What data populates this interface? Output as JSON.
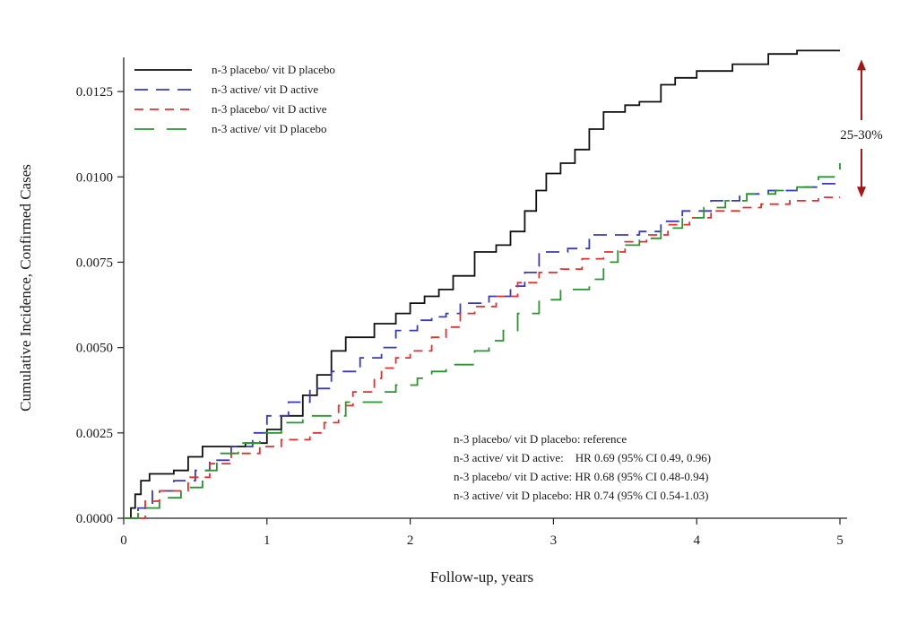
{
  "chart_data": {
    "type": "line",
    "title": "",
    "xlabel": "Follow-up, years",
    "ylabel": "Cumulative Incidence, Confirmed Cases",
    "xlim": [
      0,
      5
    ],
    "ylim": [
      0,
      0.0135
    ],
    "xticks": [
      "0",
      "1",
      "2",
      "3",
      "4",
      "5"
    ],
    "yticks": [
      "0.0000",
      "0.0025",
      "0.0050",
      "0.0075",
      "0.0100",
      "0.0125"
    ],
    "grid": false,
    "legend_position": "top-left",
    "series": [
      {
        "name": "n-3 placebo/ vit D placebo",
        "color": "#111111",
        "dash": "solid",
        "points": [
          [
            0,
            0
          ],
          [
            0.05,
            0.0003
          ],
          [
            0.08,
            0.0007
          ],
          [
            0.12,
            0.0011
          ],
          [
            0.18,
            0.0013
          ],
          [
            0.35,
            0.0014
          ],
          [
            0.45,
            0.0018
          ],
          [
            0.55,
            0.0021
          ],
          [
            0.85,
            0.0022
          ],
          [
            1.0,
            0.0026
          ],
          [
            1.1,
            0.003
          ],
          [
            1.25,
            0.0036
          ],
          [
            1.35,
            0.0042
          ],
          [
            1.45,
            0.0049
          ],
          [
            1.55,
            0.0053
          ],
          [
            1.75,
            0.0057
          ],
          [
            1.9,
            0.006
          ],
          [
            2.0,
            0.0063
          ],
          [
            2.1,
            0.0065
          ],
          [
            2.2,
            0.0067
          ],
          [
            2.3,
            0.0071
          ],
          [
            2.45,
            0.0078
          ],
          [
            2.6,
            0.008
          ],
          [
            2.7,
            0.0084
          ],
          [
            2.8,
            0.009
          ],
          [
            2.88,
            0.0096
          ],
          [
            2.95,
            0.0101
          ],
          [
            3.05,
            0.0104
          ],
          [
            3.15,
            0.0108
          ],
          [
            3.25,
            0.0114
          ],
          [
            3.35,
            0.0119
          ],
          [
            3.5,
            0.0121
          ],
          [
            3.6,
            0.0122
          ],
          [
            3.75,
            0.0127
          ],
          [
            3.85,
            0.0129
          ],
          [
            4.0,
            0.0131
          ],
          [
            4.25,
            0.0133
          ],
          [
            4.5,
            0.0136
          ],
          [
            4.7,
            0.0137
          ],
          [
            5.0,
            0.0137
          ]
        ]
      },
      {
        "name": "n-3 active/ vit D active",
        "color": "#3a3ab8",
        "dash": "long",
        "points": [
          [
            0,
            0
          ],
          [
            0.1,
            0.0003
          ],
          [
            0.2,
            0.0008
          ],
          [
            0.35,
            0.0011
          ],
          [
            0.5,
            0.0014
          ],
          [
            0.6,
            0.0017
          ],
          [
            0.75,
            0.0021
          ],
          [
            0.9,
            0.0025
          ],
          [
            1.0,
            0.003
          ],
          [
            1.15,
            0.0034
          ],
          [
            1.3,
            0.0038
          ],
          [
            1.45,
            0.0043
          ],
          [
            1.55,
            0.0043
          ],
          [
            1.65,
            0.0047
          ],
          [
            1.8,
            0.005
          ],
          [
            1.9,
            0.0055
          ],
          [
            2.05,
            0.0058
          ],
          [
            2.15,
            0.0059
          ],
          [
            2.25,
            0.006
          ],
          [
            2.35,
            0.0063
          ],
          [
            2.55,
            0.0065
          ],
          [
            2.7,
            0.0068
          ],
          [
            2.8,
            0.0072
          ],
          [
            2.9,
            0.0078
          ],
          [
            3.1,
            0.0079
          ],
          [
            3.25,
            0.0083
          ],
          [
            3.4,
            0.0083
          ],
          [
            3.6,
            0.0084
          ],
          [
            3.75,
            0.0087
          ],
          [
            3.9,
            0.009
          ],
          [
            4.1,
            0.0093
          ],
          [
            4.3,
            0.0095
          ],
          [
            4.5,
            0.0096
          ],
          [
            4.7,
            0.0097
          ],
          [
            4.85,
            0.0098
          ],
          [
            5.0,
            0.0099
          ]
        ]
      },
      {
        "name": "n-3 placebo/ vit D active",
        "color": "#e03030",
        "dash": "medium",
        "points": [
          [
            0,
            0
          ],
          [
            0.15,
            0.0005
          ],
          [
            0.25,
            0.0008
          ],
          [
            0.45,
            0.0012
          ],
          [
            0.6,
            0.0016
          ],
          [
            0.75,
            0.0019
          ],
          [
            0.95,
            0.0021
          ],
          [
            1.1,
            0.0023
          ],
          [
            1.3,
            0.0025
          ],
          [
            1.4,
            0.0028
          ],
          [
            1.5,
            0.0033
          ],
          [
            1.6,
            0.0037
          ],
          [
            1.75,
            0.0041
          ],
          [
            1.8,
            0.0044
          ],
          [
            1.9,
            0.0047
          ],
          [
            2.0,
            0.0049
          ],
          [
            2.15,
            0.0053
          ],
          [
            2.25,
            0.0056
          ],
          [
            2.35,
            0.006
          ],
          [
            2.45,
            0.0062
          ],
          [
            2.6,
            0.0065
          ],
          [
            2.75,
            0.0069
          ],
          [
            2.9,
            0.0072
          ],
          [
            3.05,
            0.0073
          ],
          [
            3.2,
            0.0076
          ],
          [
            3.35,
            0.0078
          ],
          [
            3.5,
            0.0081
          ],
          [
            3.65,
            0.0083
          ],
          [
            3.8,
            0.0086
          ],
          [
            3.95,
            0.0088
          ],
          [
            4.1,
            0.009
          ],
          [
            4.3,
            0.0091
          ],
          [
            4.45,
            0.0092
          ],
          [
            4.65,
            0.0093
          ],
          [
            4.85,
            0.0094
          ],
          [
            5.0,
            0.0094
          ]
        ]
      },
      {
        "name": "n-3 active/ vit D placebo",
        "color": "#2a9430",
        "dash": "sparse",
        "points": [
          [
            0,
            0
          ],
          [
            0.1,
            0.0003
          ],
          [
            0.25,
            0.0006
          ],
          [
            0.4,
            0.0009
          ],
          [
            0.55,
            0.0014
          ],
          [
            0.65,
            0.0019
          ],
          [
            0.8,
            0.0022
          ],
          [
            0.95,
            0.0025
          ],
          [
            1.1,
            0.0028
          ],
          [
            1.25,
            0.003
          ],
          [
            1.55,
            0.0034
          ],
          [
            1.8,
            0.0037
          ],
          [
            1.9,
            0.0039
          ],
          [
            2.05,
            0.0041
          ],
          [
            2.15,
            0.0043
          ],
          [
            2.25,
            0.0045
          ],
          [
            2.45,
            0.0049
          ],
          [
            2.55,
            0.0052
          ],
          [
            2.65,
            0.0055
          ],
          [
            2.75,
            0.006
          ],
          [
            2.9,
            0.0064
          ],
          [
            3.05,
            0.0067
          ],
          [
            3.25,
            0.007
          ],
          [
            3.35,
            0.0075
          ],
          [
            3.45,
            0.008
          ],
          [
            3.6,
            0.0082
          ],
          [
            3.75,
            0.0085
          ],
          [
            3.9,
            0.0088
          ],
          [
            4.05,
            0.0091
          ],
          [
            4.2,
            0.0093
          ],
          [
            4.35,
            0.0095
          ],
          [
            4.55,
            0.0096
          ],
          [
            4.7,
            0.0097
          ],
          [
            4.85,
            0.01
          ],
          [
            5.0,
            0.0104
          ]
        ]
      }
    ],
    "annotations": {
      "hr_lines": [
        "n-3 placebo/ vit D placebo: reference",
        "n-3 active/ vit D active:    HR 0.69 (95% CI 0.49, 0.96)",
        "n-3 placebo/ vit D active: HR 0.68 (95% CI 0.48-0.94)",
        "n-3 active/ vit D placebo: HR 0.74 (95% CI 0.54-1.03)"
      ],
      "arrow_label": "25-30%",
      "arrow_color": "#a01818",
      "arrow_range": [
        0.0095,
        0.0137
      ]
    }
  }
}
